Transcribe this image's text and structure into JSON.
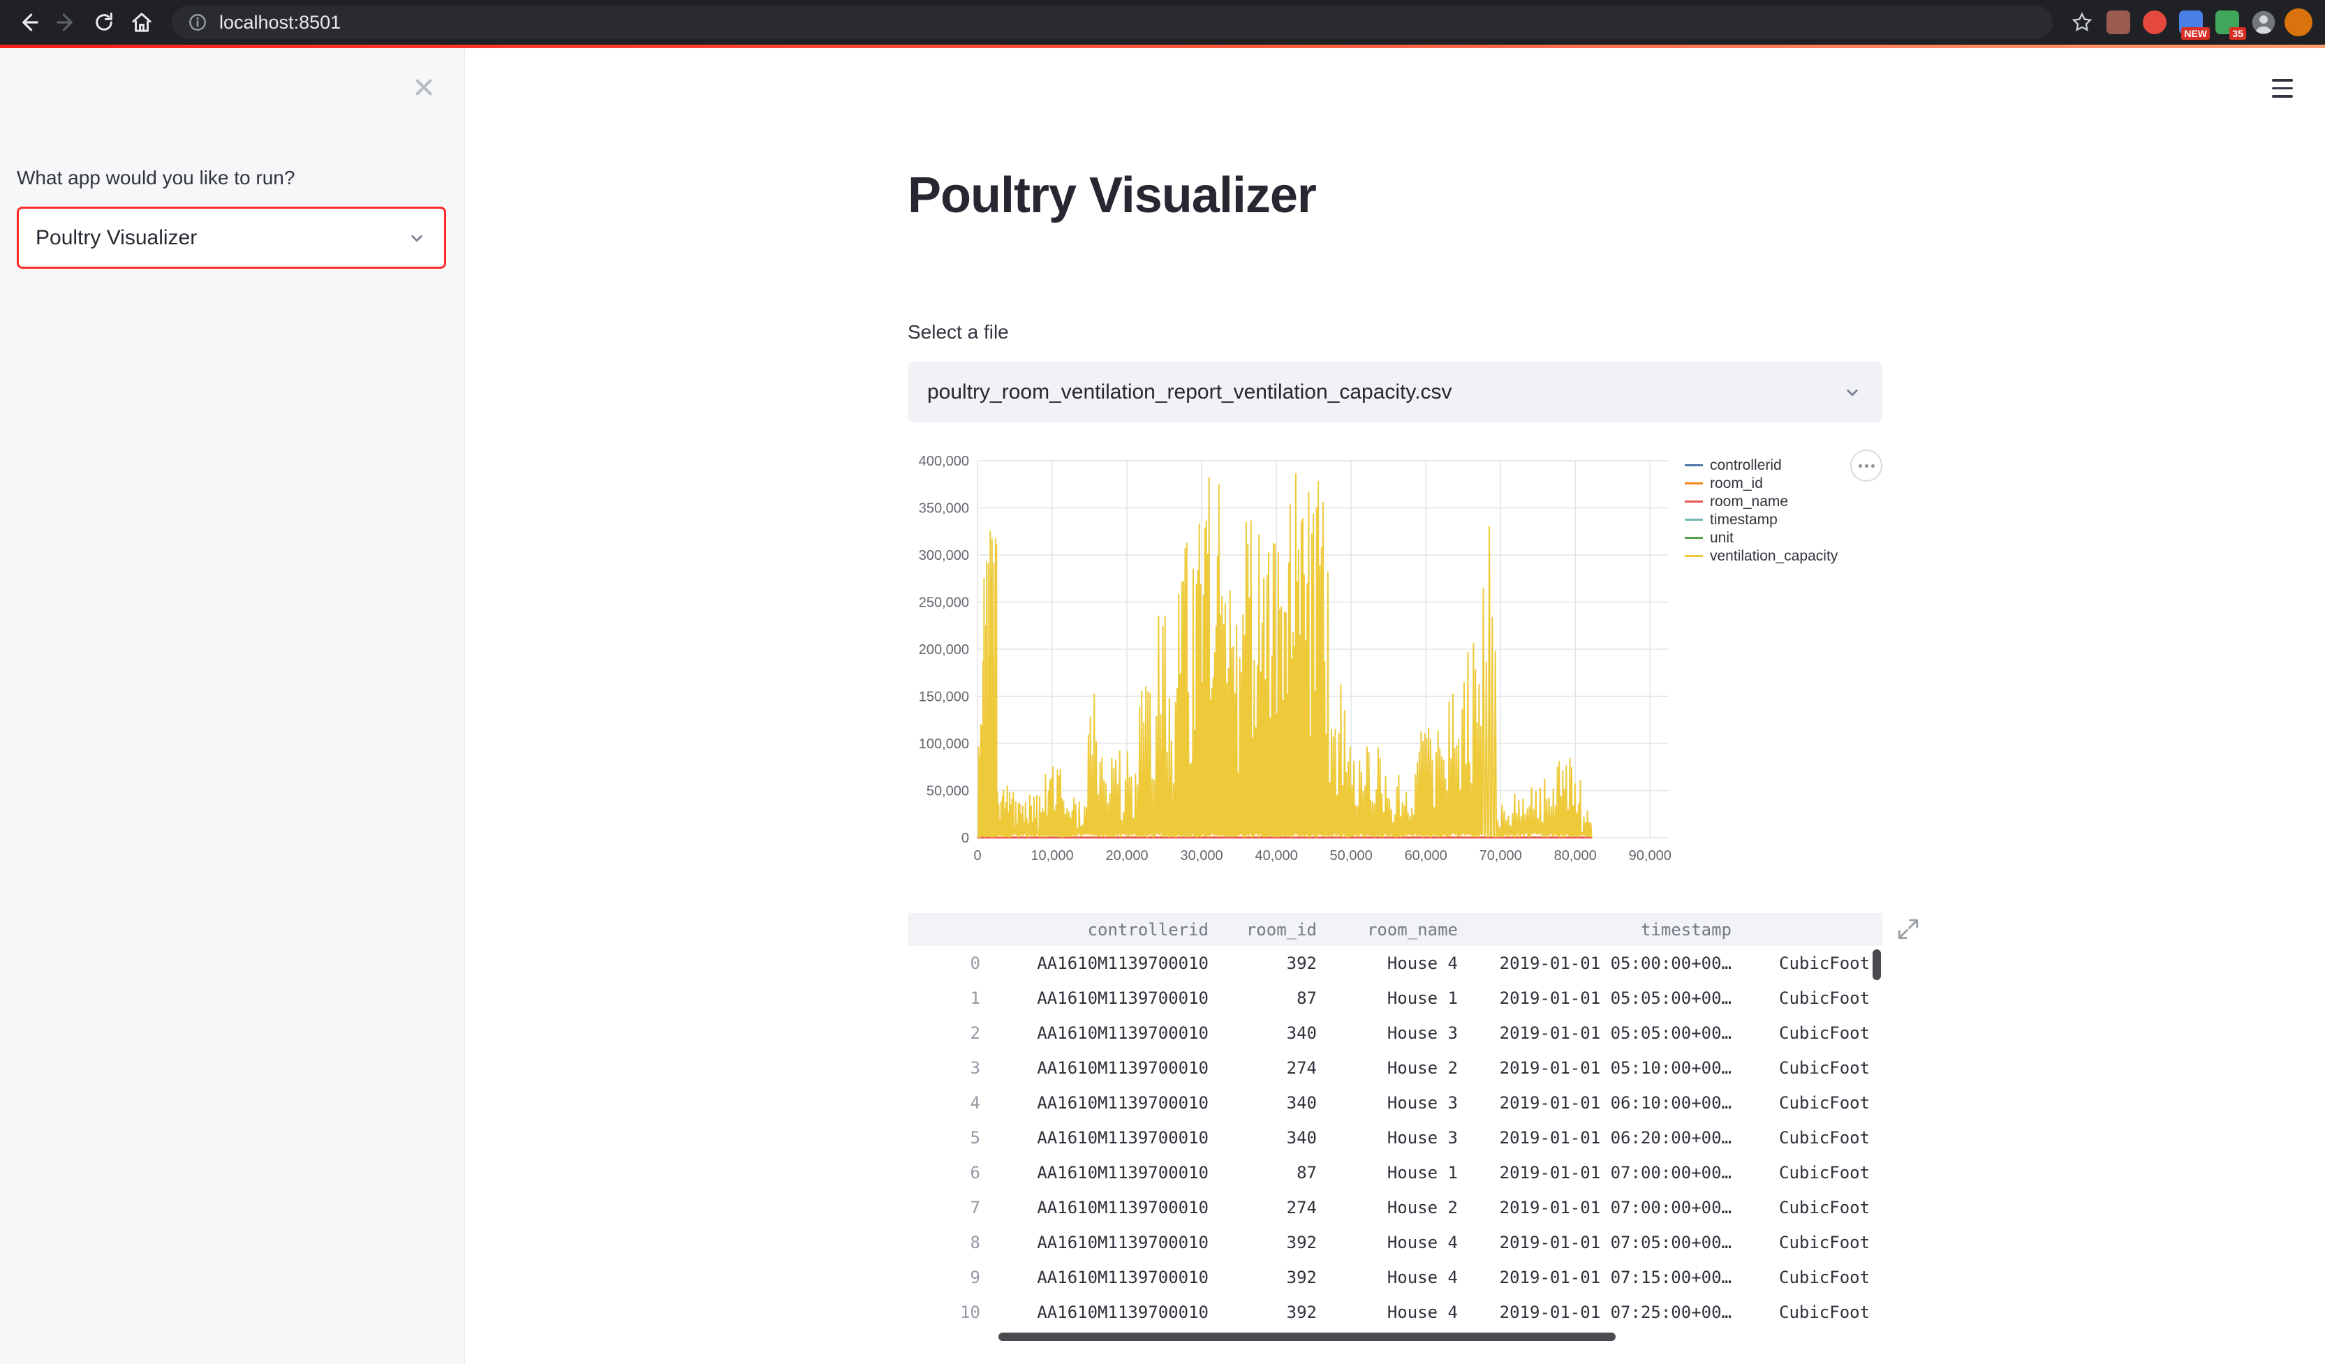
{
  "browser": {
    "url": "localhost:8501",
    "badges": {
      "blue_ext": "NEW",
      "green_ext": "35"
    }
  },
  "colors": {
    "primary_red": "#ff2b2b",
    "sidebar_bg": "#f6f7f9",
    "input_bg": "#f0f2f6",
    "text_dark": "#262730",
    "chrome_bg": "#202124"
  },
  "sidebar": {
    "question": "What app would you like to run?",
    "app_select_value": "Poultry Visualizer"
  },
  "main": {
    "title": "Poultry Visualizer",
    "file_select_label": "Select a file",
    "file_select_value": "poultry_room_ventilation_report_ventilation_capacity.csv"
  },
  "chart_data": {
    "type": "line",
    "title": "",
    "xlabel": "",
    "ylabel": "",
    "xlim": [
      0,
      92500
    ],
    "ylim": [
      0,
      400000
    ],
    "x_ticks": [
      0,
      10000,
      20000,
      30000,
      40000,
      50000,
      60000,
      70000,
      80000,
      90000
    ],
    "y_ticks": [
      0,
      50000,
      100000,
      150000,
      200000,
      250000,
      300000,
      350000,
      400000
    ],
    "grid": true,
    "legend_position": "right",
    "series": [
      {
        "name": "controllerid",
        "color": "#4c78a8",
        "render": "none"
      },
      {
        "name": "room_id",
        "color": "#f58518",
        "render": "flat",
        "value": 400,
        "x_end": 82200
      },
      {
        "name": "room_name",
        "color": "#e45756",
        "render": "flat",
        "value": 0,
        "x_end": 82200
      },
      {
        "name": "timestamp",
        "color": "#72b7b2",
        "render": "none"
      },
      {
        "name": "unit",
        "color": "#54a24b",
        "render": "none"
      },
      {
        "name": "ventilation_capacity",
        "color": "#eeca3b",
        "render": "spikes",
        "baseline": 600,
        "x_start": 0,
        "x_end": 82200,
        "peak_segments": [
          [
            100,
            700,
            20000,
            120000,
            6
          ],
          [
            700,
            2600,
            80000,
            325000,
            16
          ],
          [
            2600,
            5200,
            8000,
            55000,
            16
          ],
          [
            5200,
            8600,
            5000,
            45000,
            18
          ],
          [
            8600,
            11400,
            15000,
            75000,
            14
          ],
          [
            11400,
            14200,
            6000,
            42000,
            12
          ],
          [
            14200,
            16800,
            30000,
            152000,
            10
          ],
          [
            16800,
            21000,
            15000,
            92000,
            16
          ],
          [
            21000,
            23800,
            40000,
            160000,
            10
          ],
          [
            23800,
            26400,
            50000,
            235000,
            9
          ],
          [
            26400,
            29400,
            70000,
            312000,
            14
          ],
          [
            29400,
            32400,
            110000,
            382000,
            16
          ],
          [
            32400,
            35000,
            60000,
            262000,
            12
          ],
          [
            35000,
            38000,
            90000,
            336000,
            14
          ],
          [
            38000,
            41000,
            90000,
            312000,
            14
          ],
          [
            41000,
            44000,
            130000,
            386000,
            16
          ],
          [
            44000,
            47000,
            90000,
            378000,
            14
          ],
          [
            47000,
            50000,
            30000,
            162000,
            12
          ],
          [
            50000,
            54000,
            15000,
            96000,
            16
          ],
          [
            54000,
            58500,
            8000,
            66000,
            18
          ],
          [
            58500,
            62000,
            25000,
            116000,
            14
          ],
          [
            62000,
            65000,
            35000,
            152000,
            12
          ],
          [
            65000,
            67500,
            50000,
            206000,
            10
          ],
          [
            67500,
            69500,
            40000,
            330000,
            5
          ],
          [
            69500,
            74000,
            6000,
            46000,
            16
          ],
          [
            74000,
            77500,
            12000,
            62000,
            12
          ],
          [
            77500,
            80800,
            25000,
            84000,
            14
          ],
          [
            80800,
            82200,
            4000,
            28000,
            6
          ]
        ]
      }
    ]
  },
  "table": {
    "columns": [
      {
        "key": "index",
        "label": "",
        "cls": "col-idx"
      },
      {
        "key": "controllerid",
        "label": "controllerid",
        "cls": "col-cid"
      },
      {
        "key": "room_id",
        "label": "room_id",
        "cls": "col-rid"
      },
      {
        "key": "room_name",
        "label": "room_name",
        "cls": "col-rname"
      },
      {
        "key": "timestamp",
        "label": "timestamp",
        "cls": "col-ts"
      },
      {
        "key": "unit",
        "label": "",
        "cls": "col-unit"
      }
    ],
    "rows": [
      {
        "index": "0",
        "controllerid": "AA1610M1139700010",
        "room_id": "392",
        "room_name": "House 4",
        "timestamp": "2019-01-01 05:00:00+00…",
        "unit": "CubicFoot"
      },
      {
        "index": "1",
        "controllerid": "AA1610M1139700010",
        "room_id": "87",
        "room_name": "House 1",
        "timestamp": "2019-01-01 05:05:00+00…",
        "unit": "CubicFoot"
      },
      {
        "index": "2",
        "controllerid": "AA1610M1139700010",
        "room_id": "340",
        "room_name": "House 3",
        "timestamp": "2019-01-01 05:05:00+00…",
        "unit": "CubicFoot"
      },
      {
        "index": "3",
        "controllerid": "AA1610M1139700010",
        "room_id": "274",
        "room_name": "House 2",
        "timestamp": "2019-01-01 05:10:00+00…",
        "unit": "CubicFoot"
      },
      {
        "index": "4",
        "controllerid": "AA1610M1139700010",
        "room_id": "340",
        "room_name": "House 3",
        "timestamp": "2019-01-01 06:10:00+00…",
        "unit": "CubicFoot"
      },
      {
        "index": "5",
        "controllerid": "AA1610M1139700010",
        "room_id": "340",
        "room_name": "House 3",
        "timestamp": "2019-01-01 06:20:00+00…",
        "unit": "CubicFoot"
      },
      {
        "index": "6",
        "controllerid": "AA1610M1139700010",
        "room_id": "87",
        "room_name": "House 1",
        "timestamp": "2019-01-01 07:00:00+00…",
        "unit": "CubicFoot"
      },
      {
        "index": "7",
        "controllerid": "AA1610M1139700010",
        "room_id": "274",
        "room_name": "House 2",
        "timestamp": "2019-01-01 07:00:00+00…",
        "unit": "CubicFoot"
      },
      {
        "index": "8",
        "controllerid": "AA1610M1139700010",
        "room_id": "392",
        "room_name": "House 4",
        "timestamp": "2019-01-01 07:05:00+00…",
        "unit": "CubicFoot"
      },
      {
        "index": "9",
        "controllerid": "AA1610M1139700010",
        "room_id": "392",
        "room_name": "House 4",
        "timestamp": "2019-01-01 07:15:00+00…",
        "unit": "CubicFoot"
      },
      {
        "index": "10",
        "controllerid": "AA1610M1139700010",
        "room_id": "392",
        "room_name": "House 4",
        "timestamp": "2019-01-01 07:25:00+00…",
        "unit": "CubicFoot"
      }
    ]
  }
}
